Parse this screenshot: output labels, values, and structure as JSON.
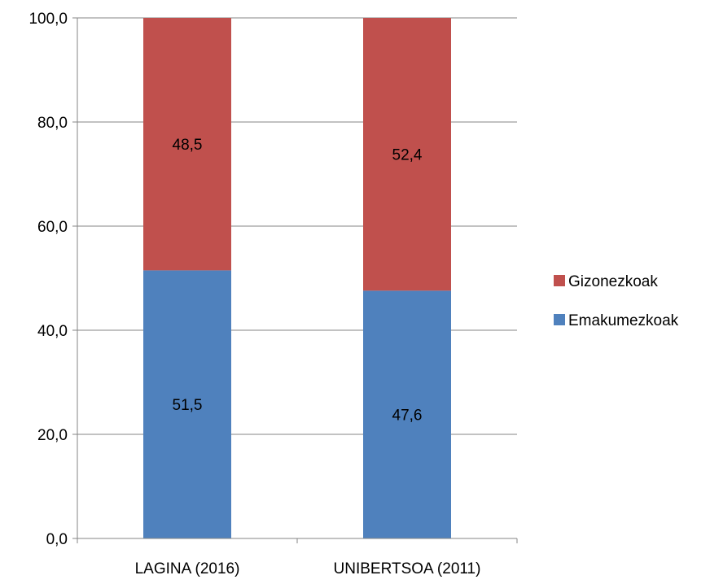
{
  "chart_data": {
    "type": "bar",
    "stacked": true,
    "categories": [
      "LAGINA (2016)",
      "UNIBERTSOA (2011)"
    ],
    "series": [
      {
        "name": "Emakumezkoak",
        "values": [
          51.5,
          47.6
        ],
        "labels": [
          "51,5",
          "47,6"
        ],
        "color": "#4f81bd"
      },
      {
        "name": "Gizonezkoak",
        "values": [
          48.5,
          52.4
        ],
        "labels": [
          "48,5",
          "52,4"
        ],
        "color": "#c0504d"
      }
    ],
    "ylim": [
      0,
      100
    ],
    "yticks": [
      0,
      20,
      40,
      60,
      80,
      100
    ],
    "ytick_labels": [
      "0,0",
      "20,0",
      "40,0",
      "60,0",
      "80,0",
      "100,0"
    ],
    "grid": true,
    "legend": {
      "placement": "right",
      "order": [
        "Gizonezkoak",
        "Emakumezkoak"
      ]
    },
    "title": "",
    "xlabel": "",
    "ylabel": ""
  }
}
